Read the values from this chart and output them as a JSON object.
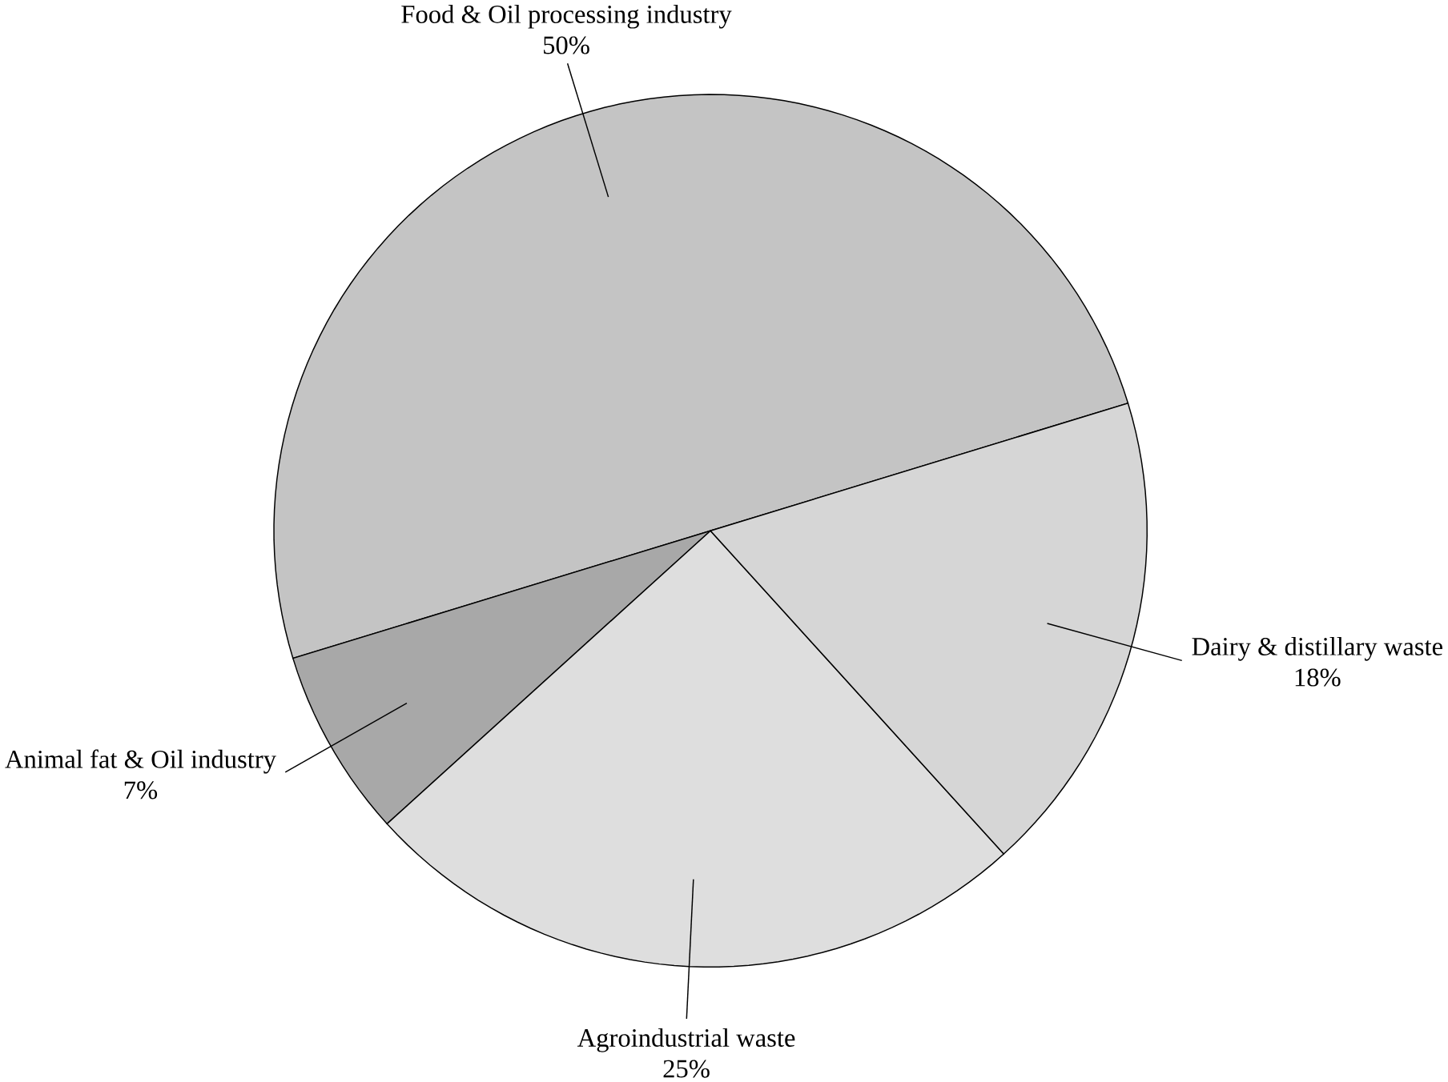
{
  "chart_data": {
    "type": "pie",
    "categories": [
      "Food & Oil processing industry",
      "Animal fat & Oil industry",
      "Agroindustrial waste",
      "Dairy & distillary waste"
    ],
    "values": [
      50,
      7,
      25,
      18
    ],
    "value_labels": [
      "50%",
      "7%",
      "25%",
      "18%"
    ],
    "colors": [
      "#c4c4c4",
      "#a8a8a8",
      "#dedede",
      "#d6d6d6"
    ]
  }
}
